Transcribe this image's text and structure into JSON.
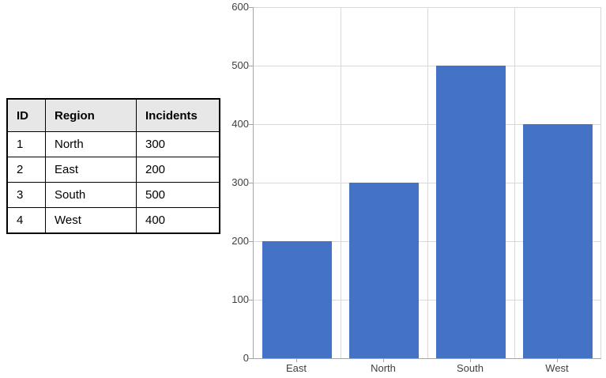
{
  "table": {
    "headers": [
      "ID",
      "Region",
      "Incidents"
    ],
    "rows": [
      [
        "1",
        "North",
        "300"
      ],
      [
        "2",
        "East",
        "200"
      ],
      [
        "3",
        "South",
        "500"
      ],
      [
        "4",
        "West",
        "400"
      ]
    ]
  },
  "chart_data": {
    "type": "bar",
    "categories": [
      "East",
      "North",
      "South",
      "West"
    ],
    "values": [
      200,
      300,
      500,
      400
    ],
    "title": "",
    "xlabel": "",
    "ylabel": "",
    "ylim": [
      0,
      600
    ],
    "ytick_step": 100,
    "ytick_labels": [
      "0",
      "100",
      "200",
      "300",
      "400",
      "500",
      "600"
    ],
    "grid": true,
    "legend": "none",
    "bar_color": "#4472c4",
    "gridline_color": "#d9d9d9",
    "axis_color": "#a6a6a6",
    "label_color": "#404040"
  }
}
